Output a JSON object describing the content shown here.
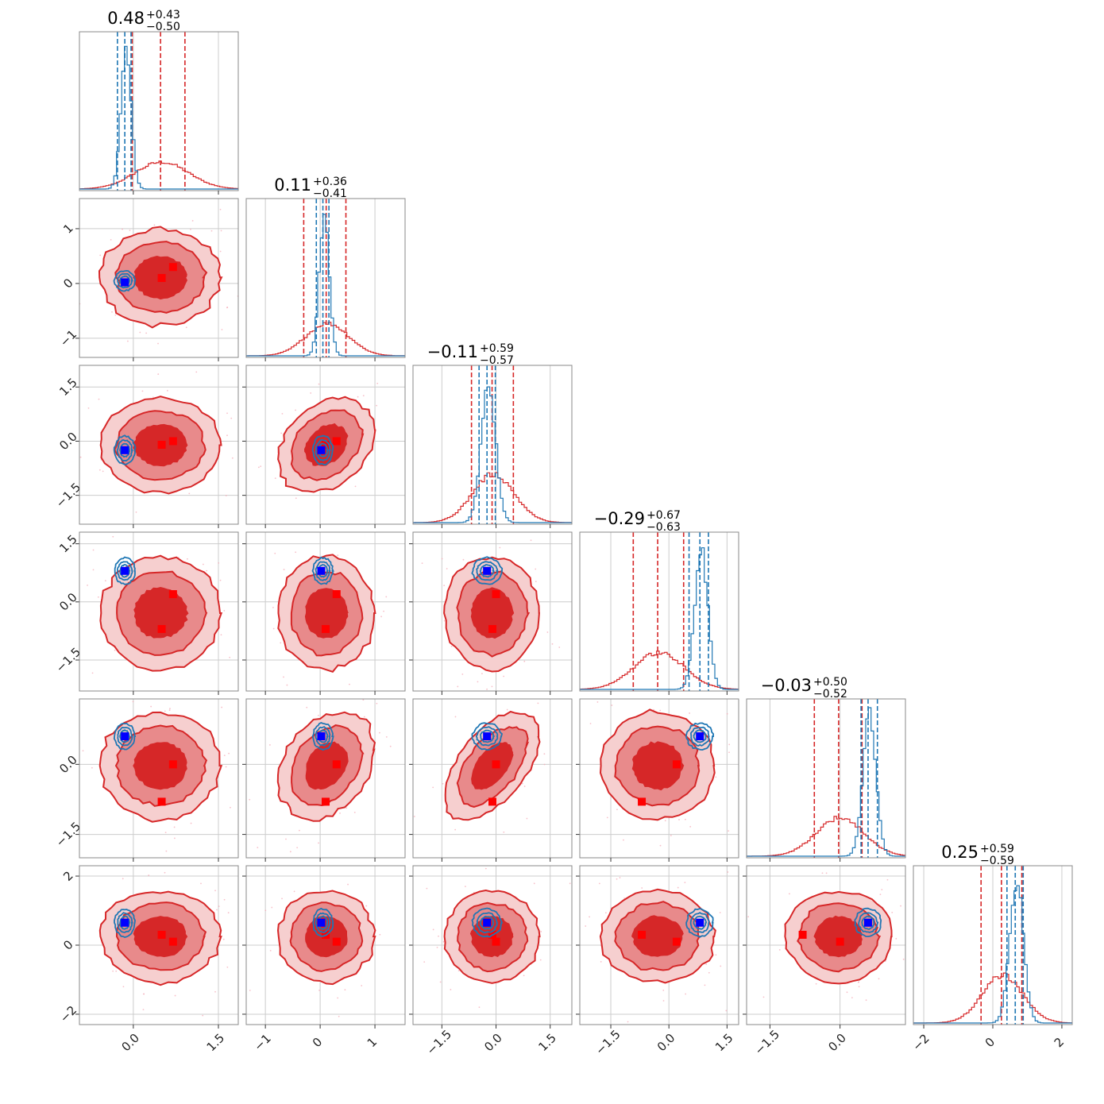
{
  "colors": {
    "red": "#d62728",
    "red_mid": "#e88a8b",
    "red_light": "#f6cfcf",
    "blue": "#1f77b4",
    "marker_red": "#ff0000",
    "marker_blue": "#0000ff",
    "grid": "#cccccc",
    "frame": "#888888"
  },
  "chart_data": {
    "type": "corner",
    "n_params": 6,
    "grid": true,
    "titles": [
      {
        "value": "0.48",
        "plus": "+0.43",
        "minus": "−0.50"
      },
      {
        "value": "0.11",
        "plus": "+0.36",
        "minus": "−0.41"
      },
      {
        "value": "−0.11",
        "plus": "+0.59",
        "minus": "−0.57"
      },
      {
        "value": "−0.29",
        "plus": "+0.67",
        "minus": "−0.63"
      },
      {
        "value": "−0.03",
        "plus": "+0.50",
        "minus": "−0.52"
      },
      {
        "value": "0.25",
        "plus": "+0.59",
        "minus": "−0.59"
      }
    ],
    "ranges": [
      [
        -0.95,
        1.85
      ],
      [
        -1.35,
        1.55
      ],
      [
        -2.3,
        2.1
      ],
      [
        -2.3,
        1.8
      ],
      [
        -2.0,
        1.4
      ],
      [
        -2.3,
        2.3
      ]
    ],
    "x_ticks": [
      [
        "0.0",
        "1.5"
      ],
      [
        "−1",
        "0",
        "1"
      ],
      [
        "−1.5",
        "0.0",
        "1.5"
      ],
      [
        "−1.5",
        "0.0",
        "1.5"
      ],
      [
        "−1.5",
        "0.0"
      ],
      [
        "−2",
        "0",
        "2"
      ]
    ],
    "y_ticks": [
      [],
      [
        "1",
        "0",
        "−1"
      ],
      [
        "1.5",
        "0.0",
        "−1.5"
      ],
      [
        "1.5",
        "0.0",
        "−1.5"
      ],
      [
        "0.0",
        "−1.5"
      ],
      [
        "2",
        "0",
        "−2"
      ]
    ],
    "red_series": {
      "means": [
        0.48,
        0.11,
        -0.11,
        -0.29,
        -0.03,
        0.25
      ],
      "sigmas": [
        0.47,
        0.39,
        0.58,
        0.65,
        0.51,
        0.59
      ],
      "quantile_lines": [
        [
          -0.02,
          0.91
        ],
        [
          -0.3,
          0.47
        ],
        [
          -0.68,
          0.48
        ],
        [
          -0.92,
          0.38
        ],
        [
          -0.55,
          0.47
        ],
        [
          -0.34,
          0.84
        ]
      ],
      "markers": [
        [
          0.7,
          0.3,
          0.0,
          0.2,
          0.0,
          0.1
        ],
        [
          0.5,
          0.1,
          -0.1,
          -0.7,
          -0.8,
          0.3
        ]
      ]
    },
    "blue_series": {
      "means": [
        -0.15,
        0.05,
        -0.25,
        0.8,
        0.6,
        0.65
      ],
      "sigmas": [
        0.09,
        0.09,
        0.2,
        0.17,
        0.14,
        0.2
      ],
      "quantile_lines": [
        [
          -0.28,
          -0.04
        ],
        [
          -0.07,
          0.16
        ],
        [
          -0.47,
          -0.02
        ],
        [
          0.52,
          1.02
        ],
        [
          0.45,
          0.8
        ],
        [
          0.41,
          0.88
        ]
      ],
      "markers": [
        [
          -0.15,
          0.02,
          -0.25,
          0.8,
          0.6,
          0.65
        ]
      ]
    },
    "correlations": [
      [
        1,
        2,
        0.3
      ],
      [
        1,
        4,
        0.3
      ],
      [
        2,
        4,
        0.55
      ]
    ]
  }
}
